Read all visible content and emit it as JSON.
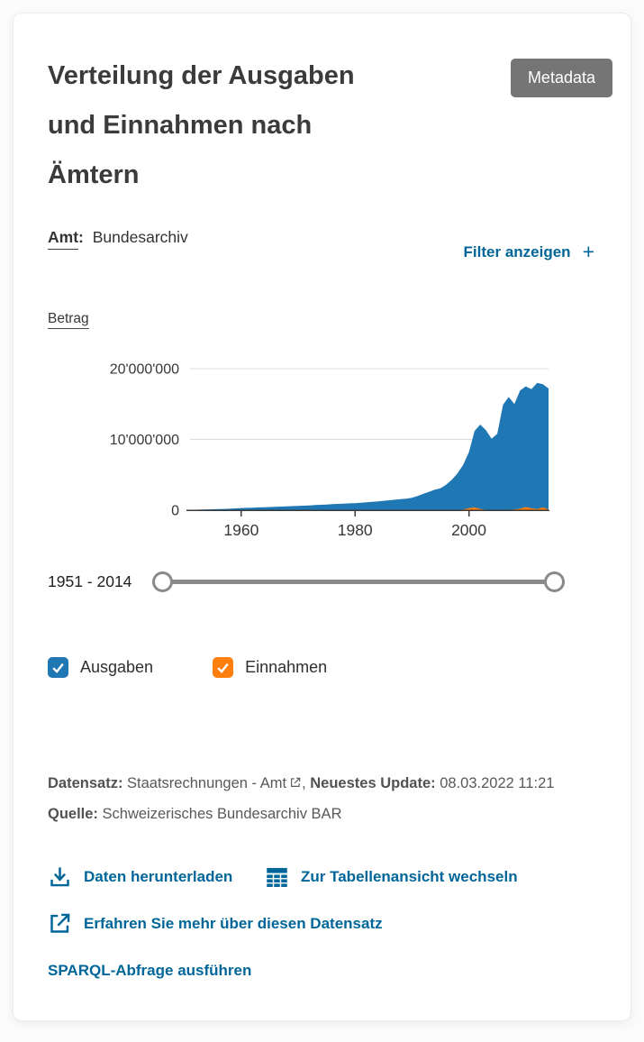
{
  "header": {
    "title_lines": [
      "Verteilung der Ausgaben",
      "und Einnahmen nach",
      "Ämtern"
    ],
    "metadata_button_label": "Metadata"
  },
  "filters": {
    "dimension": "Amt",
    "colon": ":",
    "value": "Bundesarchiv",
    "toggle_label": "Filter anzeigen",
    "toggle_icon_glyph": "+"
  },
  "chart": {
    "y_axis_title": "Betrag"
  },
  "chart_data": {
    "type": "area",
    "title": "Verteilung der Ausgaben und Einnahmen nach Ämtern",
    "ylabel": "Betrag",
    "x_range": [
      1951,
      2014
    ],
    "ylim": [
      0,
      20000000
    ],
    "grid": true,
    "xticks": [
      1960,
      1980,
      2000
    ],
    "yticks": [
      {
        "value": 0,
        "label": "0"
      },
      {
        "value": 10000000,
        "label": "10'000'000"
      },
      {
        "value": 20000000,
        "label": "20'000'000"
      }
    ],
    "series": [
      {
        "name": "Ausgaben",
        "color": "#1f77b4",
        "values": [
          50000,
          70000,
          90000,
          110000,
          130000,
          150000,
          180000,
          210000,
          250000,
          300000,
          330000,
          360000,
          390000,
          420000,
          450000,
          480000,
          510000,
          540000,
          570000,
          600000,
          640000,
          680000,
          720000,
          760000,
          800000,
          850000,
          890000,
          930000,
          970000,
          1000000,
          1050000,
          1120000,
          1180000,
          1250000,
          1320000,
          1400000,
          1480000,
          1550000,
          1620000,
          1750000,
          2000000,
          2300000,
          2600000,
          2900000,
          3100000,
          3600000,
          4300000,
          5200000,
          6400000,
          8200000,
          11200000,
          12100000,
          11300000,
          10100000,
          10800000,
          14900000,
          16000000,
          15000000,
          16900000,
          17500000,
          17100000,
          18000000,
          17800000,
          17200000
        ]
      },
      {
        "name": "Einnahmen",
        "color": "#ff7f0e",
        "values": [
          20000,
          20000,
          20000,
          20000,
          20000,
          20000,
          20000,
          20000,
          20000,
          20000,
          20000,
          20000,
          20000,
          20000,
          20000,
          20000,
          20000,
          20000,
          20000,
          20000,
          20000,
          20000,
          20000,
          20000,
          20000,
          20000,
          20000,
          20000,
          20000,
          20000,
          20000,
          20000,
          20000,
          20000,
          20000,
          20000,
          20000,
          20000,
          20000,
          20000,
          20000,
          20000,
          20000,
          20000,
          20000,
          20000,
          20000,
          20000,
          100000,
          280000,
          400000,
          180000,
          50000,
          40000,
          40000,
          50000,
          60000,
          100000,
          220000,
          450000,
          280000,
          150000,
          400000,
          120000
        ]
      }
    ]
  },
  "slider": {
    "range_label": "1951 - 2014"
  },
  "legend": [
    {
      "label": "Ausgaben",
      "color": "#1f77b4",
      "checked": true
    },
    {
      "label": "Einnahmen",
      "color": "#ff7f0e",
      "checked": true
    }
  ],
  "footer": {
    "dataset_label": "Datensatz:",
    "dataset_value": "Staatsrechnungen - Amt",
    "separator": ",",
    "update_label": "Neuestes Update:",
    "update_value": "08.03.2022 11:21",
    "source_label": "Quelle:",
    "source_value": "Schweizerisches Bundesarchiv BAR"
  },
  "actions": [
    {
      "icon": "download-icon",
      "label": "Daten herunterladen"
    },
    {
      "icon": "table-icon",
      "label": "Zur Tabellenansicht wechseln"
    },
    {
      "icon": "external-link-icon",
      "label": "Erfahren Sie mehr über diesen Datensatz"
    },
    {
      "icon": null,
      "label": "SPARQL-Abfrage ausführen"
    }
  ]
}
